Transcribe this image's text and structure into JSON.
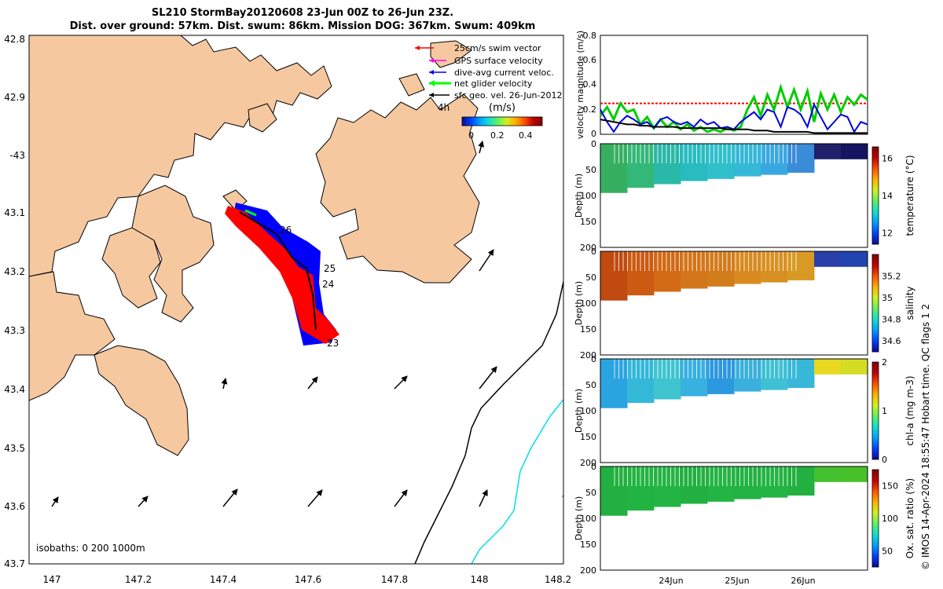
{
  "title_line1": "SL210 StormBay20120608 23-Jun 00Z to 26-Jun 23Z.",
  "title_line2": "Dist. over ground: 57km. Dist. swum: 86km. Mission DOG: 367km. Swum: 409km",
  "map": {
    "lat_ticks": [
      "42.8",
      "42.9",
      "-43",
      "43.1",
      "43.2",
      "43.3",
      "43.4",
      "43.5",
      "43.6",
      "43.7"
    ],
    "lon_ticks": [
      "147",
      "147.2",
      "147.4",
      "147.6",
      "147.8",
      "148",
      "148.2"
    ],
    "isobaths_label": "isobaths: 0   200  1000m",
    "legend": [
      {
        "label": "25cm/s swim vector",
        "color": "#ff0000"
      },
      {
        "label": "GPS surface velocity",
        "color": "#ff00ff"
      },
      {
        "label": "dive-avg current veloc.",
        "color": "#0000ff"
      },
      {
        "label": "net glider velocity",
        "color": "#00ff00"
      },
      {
        "label": "sfc geo. vel. 26-Jun-2012",
        "color": "#000000"
      }
    ],
    "scale_label": "4h",
    "colorbar_label": "(m/s)",
    "colorbar_ticks": [
      "0",
      "0.2",
      "0.4"
    ],
    "track_labels": [
      "26",
      "25",
      "24",
      "23"
    ],
    "land_color": "#f5c8a0",
    "glider_colors": {
      "red": "#ff0000",
      "blue": "#0000ff",
      "green": "#00ff00"
    }
  },
  "chart_data": [
    {
      "type": "line",
      "ylabel": "velocity magnitude (m/s)",
      "ylim": [
        0,
        0.8
      ],
      "yticks": [
        "0",
        "0.2",
        "0.4",
        "0.6",
        "0.8"
      ],
      "x": [
        0,
        0.1,
        0.2,
        0.3,
        0.4,
        0.5,
        0.6,
        0.7,
        0.8,
        0.9,
        1.0,
        1.1,
        1.2,
        1.3,
        1.4,
        1.5,
        1.6,
        1.7,
        1.8,
        1.9,
        2.0,
        2.1,
        2.2,
        2.3,
        2.4,
        2.5,
        2.6,
        2.7,
        2.8,
        2.9,
        3.0,
        3.1,
        3.2,
        3.3,
        3.4,
        3.5,
        3.6,
        3.7,
        3.8,
        3.9,
        4.0
      ],
      "series": [
        {
          "color": "#ff0000",
          "values": [
            0.25,
            0.25,
            0.25,
            0.25,
            0.25,
            0.25,
            0.25,
            0.25,
            0.25,
            0.25,
            0.25,
            0.25,
            0.25,
            0.25,
            0.25,
            0.25,
            0.25,
            0.25,
            0.25,
            0.25,
            0.25,
            0.25,
            0.25,
            0.25,
            0.25,
            0.25,
            0.25,
            0.25,
            0.25,
            0.25,
            0.25,
            0.25,
            0.25,
            0.25,
            0.25,
            0.25,
            0.25,
            0.25,
            0.25,
            0.25,
            0.25
          ]
        },
        {
          "color": "#00cc00",
          "values": [
            0.15,
            0.22,
            0.12,
            0.25,
            0.18,
            0.2,
            0.08,
            0.14,
            0.05,
            0.12,
            0.06,
            0.1,
            0.04,
            0.08,
            0.03,
            0.06,
            0.02,
            0.04,
            0.02,
            0.05,
            0.03,
            0.06,
            0.2,
            0.3,
            0.15,
            0.32,
            0.2,
            0.38,
            0.22,
            0.36,
            0.2,
            0.35,
            0.1,
            0.33,
            0.2,
            0.32,
            0.18,
            0.3,
            0.24,
            0.32,
            0.28
          ]
        },
        {
          "color": "#0000dd",
          "values": [
            0.2,
            0.1,
            0.02,
            0.1,
            0.15,
            0.12,
            0.08,
            0.1,
            0.05,
            0.12,
            0.14,
            0.1,
            0.08,
            0.1,
            0.06,
            0.12,
            0.08,
            0.1,
            0.05,
            0.06,
            0.04,
            0.1,
            0.14,
            0.18,
            0.12,
            0.2,
            0.18,
            0.06,
            0.22,
            0.2,
            0.16,
            0.06,
            0.24,
            0.14,
            0.04,
            0.1,
            0.16,
            0.14,
            0.02,
            0.1,
            0.08
          ]
        },
        {
          "color": "#000000",
          "values": [
            0.12,
            0.11,
            0.1,
            0.09,
            0.08,
            0.08,
            0.07,
            0.07,
            0.06,
            0.06,
            0.06,
            0.06,
            0.05,
            0.05,
            0.05,
            0.05,
            0.05,
            0.05,
            0.05,
            0.04,
            0.04,
            0.04,
            0.04,
            0.03,
            0.03,
            0.03,
            0.02,
            0.02,
            0.02,
            0.02,
            0.02,
            0.02,
            0.01,
            0.01,
            0.01,
            0.01,
            0.01,
            0.01,
            0.01,
            0.01,
            0.01
          ]
        }
      ]
    },
    {
      "type": "heatmap",
      "variable": "temperature",
      "ylabel": "Depth (m)",
      "ylim": [
        200,
        0
      ],
      "yticks": [
        "0",
        "50",
        "100",
        "150",
        "200"
      ],
      "colorbar_label": "temperature (°C)",
      "clim": [
        11.4,
        16.6
      ],
      "colorbar_ticks": [
        "12",
        "14",
        "16"
      ],
      "max_depth": [
        95,
        85,
        78,
        72,
        68,
        63,
        60,
        56,
        30,
        30
      ],
      "profile_colors": [
        "#36b060",
        "#34b878",
        "#2ab8a8",
        "#28bcc0",
        "#30c0cc",
        "#34b8d8",
        "#3aa8e0",
        "#3a8cd8",
        "#20206a",
        "#141460"
      ]
    },
    {
      "type": "heatmap",
      "variable": "salinity",
      "ylabel": "Depth (m)",
      "ylim": [
        200,
        0
      ],
      "yticks": [
        "0",
        "50",
        "100",
        "150",
        "200"
      ],
      "colorbar_label": "salinity",
      "clim": [
        34.5,
        35.4
      ],
      "colorbar_ticks": [
        "34.6",
        "34.8",
        "35",
        "35.2"
      ],
      "max_depth": [
        95,
        85,
        78,
        72,
        68,
        63,
        60,
        56,
        30,
        30
      ],
      "profile_colors": [
        "#c04a10",
        "#cc5a12",
        "#d26a16",
        "#d4761a",
        "#d27c1c",
        "#d88a20",
        "#d89022",
        "#d89a24",
        "#2a40a8",
        "#2244b0"
      ]
    },
    {
      "type": "heatmap",
      "variable": "chl-a",
      "ylabel": "Depth (m)",
      "ylim": [
        200,
        0
      ],
      "yticks": [
        "0",
        "50",
        "100",
        "150",
        "200"
      ],
      "colorbar_label": "chl-a (mg m-3)",
      "clim": [
        0,
        2
      ],
      "colorbar_ticks": [
        "0",
        "1",
        "2"
      ],
      "max_depth": [
        95,
        85,
        78,
        72,
        68,
        63,
        60,
        56,
        30,
        30
      ],
      "profile_colors": [
        "#2aa4e0",
        "#34b8d8",
        "#40c4d0",
        "#38b0e0",
        "#2c98e0",
        "#3ab0dc",
        "#40c0d4",
        "#38b8d8",
        "#e8d820",
        "#d4dc24"
      ]
    },
    {
      "type": "heatmap",
      "variable": "oxygen saturation",
      "ylabel": "Depth (m)",
      "ylim": [
        200,
        0
      ],
      "yticks": [
        "0",
        "50",
        "100",
        "150",
        "200"
      ],
      "colorbar_label": "Ox. sat. ratio (%)",
      "clim": [
        25,
        175
      ],
      "colorbar_ticks": [
        "50",
        "100",
        "150"
      ],
      "max_depth": [
        95,
        85,
        78,
        72,
        68,
        63,
        60,
        56,
        30,
        30
      ],
      "profile_colors": [
        "#22b040",
        "#22b442",
        "#24b444",
        "#22b040",
        "#24b444",
        "#22b242",
        "#24b444",
        "#22b040",
        "#44c030",
        "#48c028"
      ]
    }
  ],
  "time_axis": {
    "ticks": [
      "24Jun",
      "25Jun",
      "26Jun"
    ]
  },
  "side_credit": "© IMOS 14-Apr-2024 18:55:47 Hobart time. QC flags 1  2",
  "colormap": [
    "#0b0b8f",
    "#0040ff",
    "#00a0ff",
    "#10e0d0",
    "#60f060",
    "#d0f020",
    "#ffb000",
    "#ff5000",
    "#c00000",
    "#800000"
  ]
}
